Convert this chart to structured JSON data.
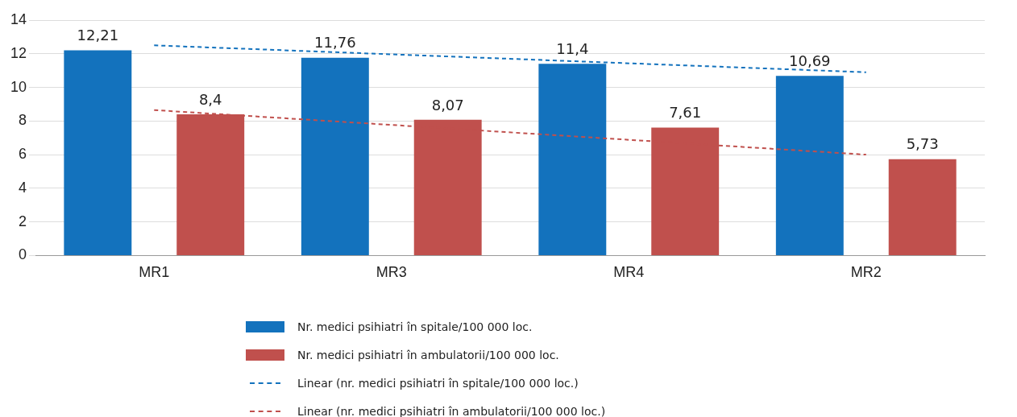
{
  "chart_data": {
    "type": "bar",
    "categories": [
      "MR1",
      "MR3",
      "MR4",
      "MR2"
    ],
    "series": [
      {
        "name": "Nr. medici psihiatri în spitale/100 000 loc.",
        "color": "#1372bd",
        "values": [
          12.21,
          11.76,
          11.4,
          10.69
        ],
        "value_labels": [
          "12,21",
          "11,76",
          "11,4",
          "10,69"
        ]
      },
      {
        "name": "Nr. medici psihiatri în ambulatorii/100 000 loc.",
        "color": "#c0504d",
        "values": [
          8.4,
          8.07,
          7.61,
          5.73
        ],
        "value_labels": [
          "8,4",
          "8,07",
          "7,61",
          "5,73"
        ]
      },
      {
        "name": "Linear (nr. medici psihiatri în spitale/100 000 loc.)",
        "type": "line",
        "color": "#1372bd",
        "x": [
          "MR1",
          "MR2"
        ],
        "values": [
          12.5,
          10.9
        ],
        "line_style": "dashed",
        "marker": "none"
      },
      {
        "name": "Linear (nr. medici psihiatri în ambulatorii/100 000 loc.)",
        "type": "line",
        "color": "#c0504d",
        "x": [
          "MR1",
          "MR2"
        ],
        "values": [
          8.65,
          6.0
        ],
        "line_style": "dashed",
        "marker": "none"
      }
    ],
    "ylim": [
      0,
      14
    ],
    "yticks": [
      0,
      2,
      4,
      6,
      8,
      10,
      12,
      14
    ],
    "grid": "y",
    "legend": "bottom"
  }
}
